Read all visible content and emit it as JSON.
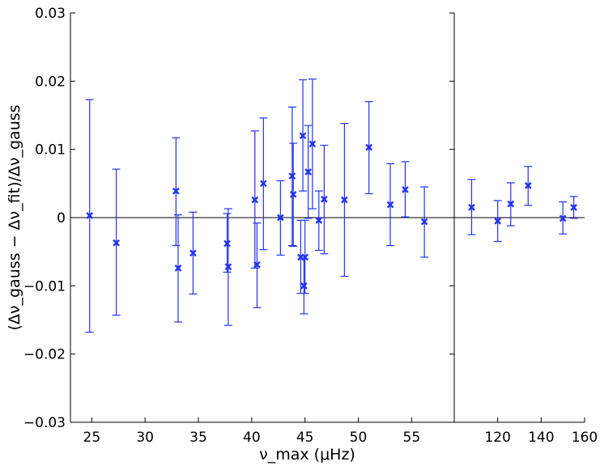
{
  "chart_data": {
    "type": "scatter",
    "title": "",
    "xlabel": "ν_max (μHz)",
    "ylabel": "(Δν_gauss − Δν_fit)/Δν_gauss",
    "ylim": [
      -0.03,
      0.03
    ],
    "yticks": [
      -0.03,
      -0.02,
      -0.01,
      0,
      0.01,
      0.02,
      0.03
    ],
    "ytick_labels": [
      "−0.03",
      "−0.02",
      "−0.01",
      "0",
      "0.01",
      "0.02",
      "0.03"
    ],
    "grid": false,
    "reference_line_y": 0,
    "color": "#2233ee",
    "panels": [
      {
        "name": "left",
        "xlim": [
          23,
          59
        ],
        "xticks": [
          25,
          30,
          35,
          40,
          45,
          50,
          55
        ],
        "xtick_labels": [
          "25",
          "30",
          "35",
          "40",
          "45",
          "50",
          "55"
        ],
        "points": [
          {
            "x": 24.8,
            "y": 0.0003,
            "err_low": -0.0168,
            "err_high": 0.0173
          },
          {
            "x": 27.3,
            "y": -0.0037,
            "err_low": -0.0143,
            "err_high": 0.0071
          },
          {
            "x": 32.9,
            "y": 0.0039,
            "err_low": -0.0041,
            "err_high": 0.0117
          },
          {
            "x": 33.1,
            "y": -0.0074,
            "err_low": -0.0153,
            "err_high": 0.0004
          },
          {
            "x": 34.5,
            "y": -0.0052,
            "err_low": -0.0112,
            "err_high": 0.0008
          },
          {
            "x": 37.7,
            "y": -0.0038,
            "err_low": -0.008,
            "err_high": 0.0006
          },
          {
            "x": 37.8,
            "y": -0.0072,
            "err_low": -0.0158,
            "err_high": 0.0013
          },
          {
            "x": 40.3,
            "y": 0.0026,
            "err_low": -0.0074,
            "err_high": 0.0127
          },
          {
            "x": 40.5,
            "y": -0.0069,
            "err_low": -0.0132,
            "err_high": -0.0008
          },
          {
            "x": 41.1,
            "y": 0.005,
            "err_low": -0.0047,
            "err_high": 0.0146
          },
          {
            "x": 42.7,
            "y": 0.0,
            "err_low": -0.0055,
            "err_high": 0.0054
          },
          {
            "x": 43.8,
            "y": 0.0061,
            "err_low": -0.0041,
            "err_high": 0.0162
          },
          {
            "x": 43.9,
            "y": 0.0034,
            "err_low": -0.0042,
            "err_high": 0.0109
          },
          {
            "x": 44.6,
            "y": -0.0058,
            "err_low": -0.0111,
            "err_high": -0.0004
          },
          {
            "x": 44.8,
            "y": 0.012,
            "err_low": 0.0039,
            "err_high": 0.0202
          },
          {
            "x": 44.9,
            "y": -0.01,
            "err_low": -0.0141,
            "err_high": -0.006
          },
          {
            "x": 45.0,
            "y": -0.0058,
            "err_low": -0.0111,
            "err_high": -0.0004
          },
          {
            "x": 45.3,
            "y": 0.0067,
            "err_low": -0.0001,
            "err_high": 0.0135
          },
          {
            "x": 45.7,
            "y": 0.0108,
            "err_low": 0.0013,
            "err_high": 0.0203
          },
          {
            "x": 46.3,
            "y": -0.0004,
            "err_low": -0.0048,
            "err_high": 0.0039
          },
          {
            "x": 46.8,
            "y": 0.0027,
            "err_low": -0.0053,
            "err_high": 0.0106
          },
          {
            "x": 48.7,
            "y": 0.0026,
            "err_low": -0.0086,
            "err_high": 0.0138
          },
          {
            "x": 51.0,
            "y": 0.0103,
            "err_low": 0.0035,
            "err_high": 0.017
          },
          {
            "x": 53.0,
            "y": 0.0019,
            "err_low": -0.0041,
            "err_high": 0.0079
          },
          {
            "x": 54.4,
            "y": 0.0041,
            "err_low": 0.0001,
            "err_high": 0.0082
          },
          {
            "x": 56.2,
            "y": -0.0006,
            "err_low": -0.0058,
            "err_high": 0.0045
          }
        ]
      },
      {
        "name": "right",
        "xlim": [
          100,
          160
        ],
        "xticks": [
          120,
          140,
          160
        ],
        "xtick_labels": [
          "120",
          "140",
          "160"
        ],
        "points": [
          {
            "x": 108.0,
            "y": 0.0015,
            "err_low": -0.0025,
            "err_high": 0.0056
          },
          {
            "x": 120.0,
            "y": -0.0005,
            "err_low": -0.0035,
            "err_high": 0.0025
          },
          {
            "x": 126.0,
            "y": 0.002,
            "err_low": -0.0012,
            "err_high": 0.0051
          },
          {
            "x": 134.0,
            "y": 0.0047,
            "err_low": 0.0018,
            "err_high": 0.0075
          },
          {
            "x": 150.0,
            "y": -0.0001,
            "err_low": -0.0024,
            "err_high": 0.0023
          },
          {
            "x": 155.0,
            "y": 0.0015,
            "err_low": -0.0001,
            "err_high": 0.0031
          }
        ]
      }
    ]
  }
}
